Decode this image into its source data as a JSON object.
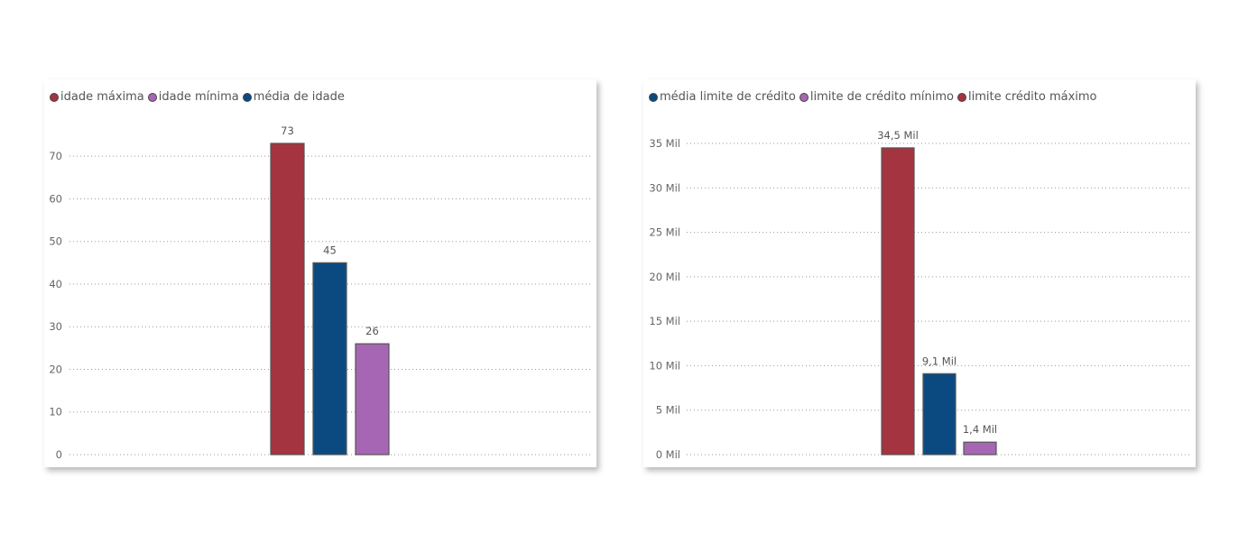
{
  "colors": {
    "red": "#A4343F",
    "blue": "#0B4A80",
    "purple": "#A666B4"
  },
  "chart_data": [
    {
      "type": "bar",
      "title": "",
      "legend": [
        {
          "label": "idade máxima",
          "color": "#A4343F"
        },
        {
          "label": "idade mínima",
          "color": "#A666B4"
        },
        {
          "label": "média de idade",
          "color": "#0B4A80"
        }
      ],
      "legend_position": "top-left",
      "grid": true,
      "ylim": [
        0,
        73
      ],
      "yticks": [
        0,
        10,
        20,
        30,
        40,
        50,
        60,
        70
      ],
      "ytick_labels": [
        "0",
        "10",
        "20",
        "30",
        "40",
        "50",
        "60",
        "70"
      ],
      "bars": [
        {
          "series": "idade máxima",
          "value": 73,
          "label": "73",
          "color": "#A4343F"
        },
        {
          "series": "média de idade",
          "value": 45,
          "label": "45",
          "color": "#0B4A80"
        },
        {
          "series": "idade mínima",
          "value": 26,
          "label": "26",
          "color": "#A666B4"
        }
      ]
    },
    {
      "type": "bar",
      "title": "",
      "legend": [
        {
          "label": "média limite de crédito",
          "color": "#0B4A80"
        },
        {
          "label": "limite de crédito mínimo",
          "color": "#A666B4"
        },
        {
          "label": "limite crédito máximo",
          "color": "#A4343F"
        }
      ],
      "legend_position": "top-left",
      "grid": true,
      "ylim": [
        0,
        35000
      ],
      "yticks": [
        0,
        5000,
        10000,
        15000,
        20000,
        25000,
        30000,
        35000
      ],
      "ytick_labels": [
        "0 Mil",
        "5 Mil",
        "10 Mil",
        "15 Mil",
        "20 Mil",
        "25 Mil",
        "30 Mil",
        "35 Mil"
      ],
      "bars": [
        {
          "series": "limite crédito máximo",
          "value": 34500,
          "label": "34,5 Mil",
          "color": "#A4343F"
        },
        {
          "series": "média limite de crédito",
          "value": 9100,
          "label": "9,1 Mil",
          "color": "#0B4A80"
        },
        {
          "series": "limite de crédito mínimo",
          "value": 1400,
          "label": "1,4 Mil",
          "color": "#A666B4"
        }
      ]
    }
  ]
}
